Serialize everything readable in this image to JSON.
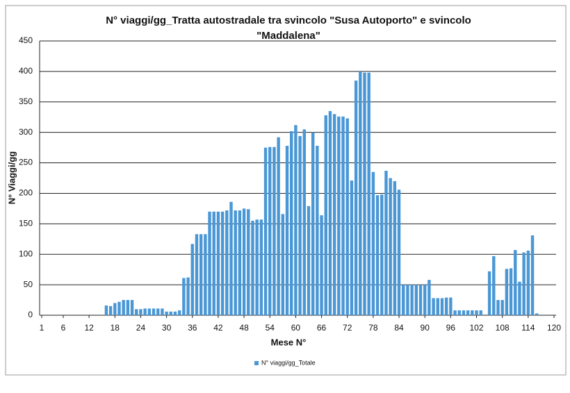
{
  "chart_data": {
    "type": "bar",
    "title": [
      "N° viaggi/gg_Tratta autostradale tra svincolo \"Susa Autoporto\" e svincolo",
      "\"Maddalena\""
    ],
    "x_label": "Mese N°",
    "y_label": "N° Viaggi/gg",
    "categories": [
      1,
      null,
      null,
      null,
      null,
      6,
      null,
      null,
      null,
      null,
      null,
      12,
      null,
      null,
      null,
      null,
      null,
      18,
      null,
      null,
      null,
      null,
      null,
      24,
      null,
      null,
      null,
      null,
      null,
      30,
      null,
      null,
      null,
      null,
      null,
      36,
      null,
      null,
      null,
      null,
      null,
      42,
      null,
      null,
      null,
      null,
      null,
      48,
      null,
      null,
      null,
      null,
      null,
      54,
      null,
      null,
      null,
      null,
      null,
      60,
      null,
      null,
      null,
      null,
      null,
      66,
      null,
      null,
      null,
      null,
      null,
      72,
      null,
      null,
      null,
      null,
      null,
      78,
      null,
      null,
      null,
      null,
      null,
      84,
      null,
      null,
      null,
      null,
      null,
      90,
      null,
      null,
      null,
      null,
      null,
      96,
      null,
      null,
      null,
      null,
      null,
      102,
      null,
      null,
      null,
      null,
      null,
      108,
      null,
      null,
      null,
      null,
      null,
      114,
      null,
      null,
      null,
      null,
      null,
      120
    ],
    "series": [
      {
        "name": "N° viaggi/gg_Totale",
        "color": "#4a97d6",
        "values": [
          0,
          0,
          0,
          0,
          0,
          0,
          0,
          0,
          0,
          0,
          0,
          0,
          0,
          0,
          0,
          16,
          15,
          20,
          22,
          25,
          25,
          25,
          10,
          10,
          11,
          11,
          11,
          11,
          11,
          6,
          6,
          6,
          8,
          61,
          62,
          117,
          133,
          133,
          133,
          170,
          170,
          170,
          170,
          172,
          186,
          172,
          172,
          175,
          174,
          155,
          157,
          157,
          275,
          276,
          276,
          292,
          166,
          278,
          302,
          312,
          294,
          305,
          179,
          300,
          278,
          164,
          328,
          335,
          330,
          326,
          326,
          323,
          221,
          385,
          400,
          398,
          398,
          235,
          197,
          198,
          237,
          225,
          220,
          206,
          50,
          50,
          50,
          50,
          50,
          50,
          58,
          28,
          28,
          28,
          29,
          29,
          8,
          8,
          8,
          8,
          8,
          8,
          8,
          0,
          72,
          97,
          25,
          25,
          76,
          77,
          107,
          55,
          103,
          106,
          131,
          3,
          0,
          0,
          0,
          0
        ]
      }
    ],
    "ylim": [
      0,
      450
    ],
    "yticks": [
      0,
      50,
      100,
      150,
      200,
      250,
      300,
      350,
      400,
      450
    ],
    "grid": true,
    "legend": "bottom"
  }
}
